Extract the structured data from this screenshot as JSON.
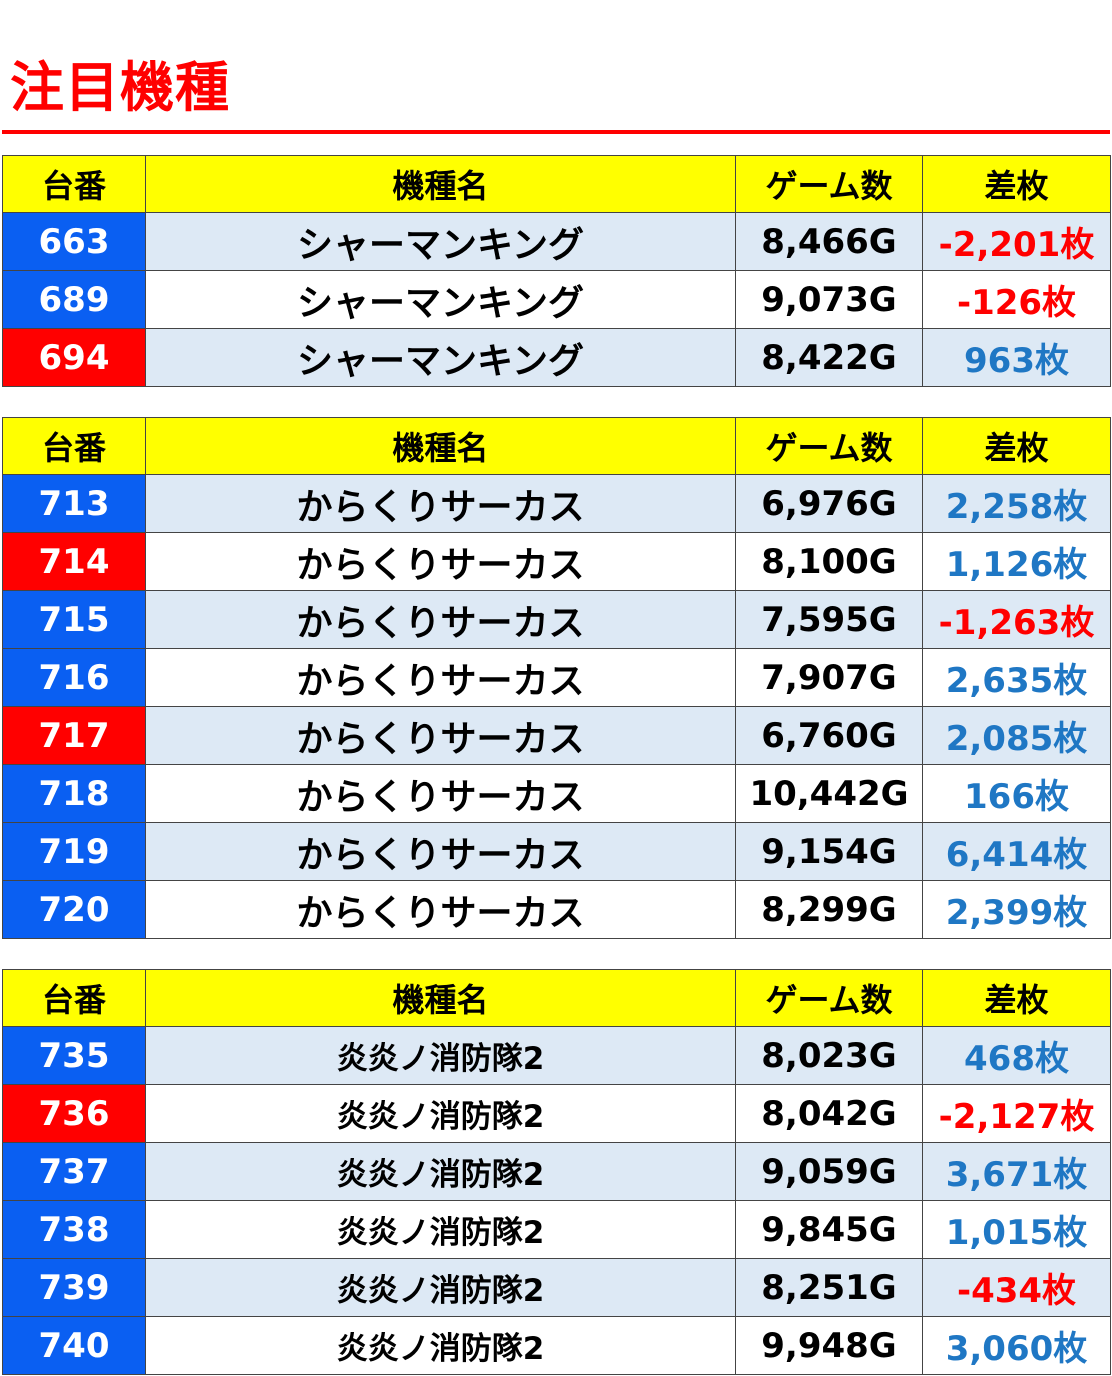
{
  "title": "注目機種",
  "headers": {
    "number": "台番",
    "name": "機種名",
    "games": "ゲーム数",
    "diff": "差枚"
  },
  "colors": {
    "title": "#ff0000",
    "header_bg": "#ffff00",
    "number_blue": "#0a5ff2",
    "number_red": "#ff0000",
    "diff_positive": "#1f77c4",
    "diff_negative": "#ff0000",
    "row_tint": "#dde9f5"
  },
  "tables": [
    {
      "rows": [
        {
          "number": "663",
          "number_color": "blue",
          "name": "シャーマンキング",
          "games": "8,466G",
          "diff": "-2,201枚",
          "diff_sign": "neg"
        },
        {
          "number": "689",
          "number_color": "blue",
          "name": "シャーマンキング",
          "games": "9,073G",
          "diff": "-126枚",
          "diff_sign": "neg"
        },
        {
          "number": "694",
          "number_color": "red",
          "name": "シャーマンキング",
          "games": "8,422G",
          "diff": "963枚",
          "diff_sign": "pos"
        }
      ]
    },
    {
      "rows": [
        {
          "number": "713",
          "number_color": "blue",
          "name": "からくりサーカス",
          "games": "6,976G",
          "diff": "2,258枚",
          "diff_sign": "pos"
        },
        {
          "number": "714",
          "number_color": "red",
          "name": "からくりサーカス",
          "games": "8,100G",
          "diff": "1,126枚",
          "diff_sign": "pos"
        },
        {
          "number": "715",
          "number_color": "blue",
          "name": "からくりサーカス",
          "games": "7,595G",
          "diff": "-1,263枚",
          "diff_sign": "neg"
        },
        {
          "number": "716",
          "number_color": "blue",
          "name": "からくりサーカス",
          "games": "7,907G",
          "diff": "2,635枚",
          "diff_sign": "pos"
        },
        {
          "number": "717",
          "number_color": "red",
          "name": "からくりサーカス",
          "games": "6,760G",
          "diff": "2,085枚",
          "diff_sign": "pos"
        },
        {
          "number": "718",
          "number_color": "blue",
          "name": "からくりサーカス",
          "games": "10,442G",
          "diff": "166枚",
          "diff_sign": "pos"
        },
        {
          "number": "719",
          "number_color": "blue",
          "name": "からくりサーカス",
          "games": "9,154G",
          "diff": "6,414枚",
          "diff_sign": "pos"
        },
        {
          "number": "720",
          "number_color": "blue",
          "name": "からくりサーカス",
          "games": "8,299G",
          "diff": "2,399枚",
          "diff_sign": "pos"
        }
      ]
    },
    {
      "rows": [
        {
          "number": "735",
          "number_color": "blue",
          "name": "炎炎ノ消防隊2",
          "games": "8,023G",
          "diff": "468枚",
          "diff_sign": "pos"
        },
        {
          "number": "736",
          "number_color": "red",
          "name": "炎炎ノ消防隊2",
          "games": "8,042G",
          "diff": "-2,127枚",
          "diff_sign": "neg"
        },
        {
          "number": "737",
          "number_color": "blue",
          "name": "炎炎ノ消防隊2",
          "games": "9,059G",
          "diff": "3,671枚",
          "diff_sign": "pos"
        },
        {
          "number": "738",
          "number_color": "blue",
          "name": "炎炎ノ消防隊2",
          "games": "9,845G",
          "diff": "1,015枚",
          "diff_sign": "pos"
        },
        {
          "number": "739",
          "number_color": "blue",
          "name": "炎炎ノ消防隊2",
          "games": "8,251G",
          "diff": "-434枚",
          "diff_sign": "neg"
        },
        {
          "number": "740",
          "number_color": "blue",
          "name": "炎炎ノ消防隊2",
          "games": "9,948G",
          "diff": "3,060枚",
          "diff_sign": "pos"
        }
      ]
    }
  ]
}
